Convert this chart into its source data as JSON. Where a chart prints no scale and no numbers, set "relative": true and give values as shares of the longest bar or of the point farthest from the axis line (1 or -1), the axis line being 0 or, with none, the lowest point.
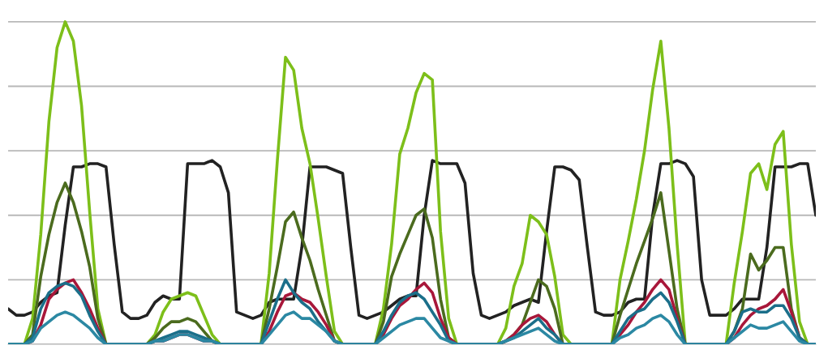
{
  "chart_data": {
    "type": "line",
    "relative": true,
    "grid": "y",
    "line_style": "solid",
    "marker": "none",
    "categories": [
      null,
      null,
      null,
      null,
      null,
      null,
      null,
      null,
      null,
      null,
      null,
      null,
      null,
      null,
      null,
      null,
      null,
      null,
      null,
      null,
      null,
      null,
      null,
      null,
      null,
      null,
      null,
      null,
      null,
      null,
      null,
      null,
      null,
      null,
      null,
      null,
      null,
      null,
      null,
      null,
      null,
      null,
      null,
      null,
      null,
      null,
      null,
      null,
      null,
      null,
      null,
      null,
      null,
      null,
      null,
      null,
      null,
      null,
      null,
      null,
      null,
      null,
      null,
      null,
      null,
      null,
      null,
      null,
      null,
      null,
      null,
      null,
      null,
      null,
      null,
      null,
      null,
      null,
      null,
      null,
      null,
      null,
      null,
      null,
      null,
      null,
      null,
      null,
      null,
      null,
      null,
      null,
      null,
      null,
      null,
      null,
      null,
      null,
      null,
      null
    ],
    "series": [
      {
        "color": "#222222",
        "values": [
          0.11,
          0.09,
          0.09,
          0.1,
          0.13,
          0.15,
          0.16,
          0.37,
          0.55,
          0.55,
          0.56,
          0.56,
          0.55,
          0.31,
          0.1,
          0.08,
          0.08,
          0.09,
          0.13,
          0.15,
          0.14,
          0.14,
          0.56,
          0.56,
          0.56,
          0.57,
          0.55,
          0.47,
          0.1,
          0.09,
          0.08,
          0.09,
          0.13,
          0.14,
          0.14,
          0.14,
          0.3,
          0.55,
          0.55,
          0.55,
          0.54,
          0.53,
          0.3,
          0.09,
          0.08,
          0.09,
          0.1,
          0.12,
          0.14,
          0.15,
          0.15,
          0.4,
          0.57,
          0.56,
          0.56,
          0.56,
          0.5,
          0.22,
          0.09,
          0.08,
          0.09,
          0.1,
          0.12,
          0.13,
          0.14,
          0.13,
          0.35,
          0.55,
          0.55,
          0.54,
          0.51,
          0.3,
          0.1,
          0.09,
          0.09,
          0.1,
          0.13,
          0.14,
          0.14,
          0.4,
          0.56,
          0.56,
          0.57,
          0.56,
          0.52,
          0.2,
          0.09,
          0.09,
          0.09,
          0.11,
          0.14,
          0.14,
          0.14,
          0.3,
          0.55,
          0.55,
          0.55,
          0.56,
          0.56,
          0.4
        ]
      },
      {
        "color": "#7dbf1a",
        "values": [
          0,
          0,
          0,
          0.08,
          0.34,
          0.69,
          0.92,
          1.0,
          0.94,
          0.74,
          0.41,
          0.11,
          0,
          0,
          0,
          0,
          0,
          0,
          0.03,
          0.1,
          0.14,
          0.15,
          0.16,
          0.15,
          0.09,
          0.03,
          0,
          0,
          0,
          0,
          0,
          0,
          0.22,
          0.57,
          0.89,
          0.85,
          0.67,
          0.56,
          0.39,
          0.21,
          0.04,
          0,
          0,
          0,
          0,
          0,
          0.11,
          0.31,
          0.59,
          0.67,
          0.78,
          0.84,
          0.82,
          0.35,
          0.08,
          0,
          0,
          0,
          0,
          0,
          0,
          0.05,
          0.18,
          0.25,
          0.4,
          0.38,
          0.34,
          0.21,
          0.03,
          0,
          0,
          0,
          0,
          0,
          0,
          0.2,
          0.32,
          0.45,
          0.6,
          0.79,
          0.94,
          0.67,
          0.31,
          0,
          0,
          0,
          0,
          0,
          0,
          0.19,
          0.35,
          0.53,
          0.56,
          0.48,
          0.62,
          0.66,
          0.31,
          0.07,
          0,
          0
        ]
      },
      {
        "color": "#4b6b1e",
        "values": [
          0,
          0,
          0,
          0.03,
          0.21,
          0.34,
          0.44,
          0.5,
          0.44,
          0.35,
          0.24,
          0.08,
          0,
          0,
          0,
          0,
          0,
          0,
          0.02,
          0.05,
          0.07,
          0.07,
          0.08,
          0.07,
          0.04,
          0.01,
          0,
          0,
          0,
          0,
          0,
          0,
          0.11,
          0.24,
          0.38,
          0.41,
          0.33,
          0.26,
          0.17,
          0.09,
          0.01,
          0,
          0,
          0,
          0,
          0,
          0.07,
          0.21,
          0.28,
          0.34,
          0.4,
          0.42,
          0.33,
          0.14,
          0.02,
          0,
          0,
          0,
          0,
          0,
          0,
          0.01,
          0.03,
          0.06,
          0.13,
          0.2,
          0.18,
          0.11,
          0,
          0,
          0,
          0,
          0,
          0,
          0,
          0.09,
          0.17,
          0.25,
          0.32,
          0.39,
          0.47,
          0.29,
          0.11,
          0,
          0,
          0,
          0,
          0,
          0,
          0.04,
          0.11,
          0.28,
          0.23,
          0.26,
          0.3,
          0.3,
          0.11,
          0.02,
          0,
          0
        ]
      },
      {
        "color": "#a8173a",
        "values": [
          null,
          null,
          0,
          0.01,
          0.06,
          0.14,
          0.17,
          0.19,
          0.2,
          0.16,
          0.11,
          0.05,
          0,
          0,
          0,
          0,
          0,
          0,
          0.01,
          0.01,
          0.02,
          0.03,
          0.03,
          0.02,
          0.01,
          0.01,
          0,
          0,
          0,
          0,
          0,
          0,
          0.04,
          0.1,
          0.15,
          0.16,
          0.14,
          0.13,
          0.1,
          0.06,
          0.01,
          0,
          0,
          0,
          0,
          0,
          0.03,
          0.08,
          0.12,
          0.14,
          0.17,
          0.19,
          0.16,
          0.08,
          0.02,
          0,
          0,
          0,
          0,
          0,
          0,
          0.01,
          0.03,
          0.06,
          0.08,
          0.09,
          0.07,
          0.03,
          0,
          0,
          0,
          0,
          0,
          0,
          0,
          0.03,
          0.06,
          0.1,
          0.13,
          0.17,
          0.2,
          0.17,
          0.08,
          0,
          0,
          0,
          0,
          0,
          0,
          0.02,
          0.06,
          0.09,
          0.11,
          0.12,
          0.14,
          0.17,
          0.1,
          0.02,
          0,
          0
        ]
      },
      {
        "color": "#1b6f8a",
        "values": [
          0,
          0,
          0,
          0.02,
          0.11,
          0.16,
          0.18,
          0.19,
          0.18,
          0.15,
          0.09,
          0.04,
          0,
          0,
          0,
          0,
          0,
          0,
          0.01,
          0.02,
          0.03,
          0.04,
          0.04,
          0.03,
          0.02,
          0.01,
          0,
          0,
          0,
          0,
          0,
          0,
          0.07,
          0.14,
          0.2,
          0.16,
          0.13,
          0.11,
          0.07,
          0.04,
          0.01,
          0,
          0,
          0,
          0,
          0,
          0.04,
          0.09,
          0.13,
          0.15,
          0.16,
          0.14,
          0.1,
          0.06,
          0.01,
          0,
          0,
          0,
          0,
          0,
          0,
          0.01,
          0.02,
          0.04,
          0.06,
          0.08,
          0.05,
          0.03,
          0,
          0,
          0,
          0,
          0,
          0,
          0,
          0.04,
          0.08,
          0.1,
          0.11,
          0.14,
          0.16,
          0.13,
          0.07,
          0,
          0,
          0,
          0,
          0,
          0,
          0.04,
          0.1,
          0.11,
          0.1,
          0.1,
          0.12,
          0.12,
          0.08,
          0.02,
          0,
          0
        ]
      },
      {
        "color": "#2b88a3",
        "values": [
          0,
          0,
          0,
          0.01,
          0.05,
          0.07,
          0.09,
          0.1,
          0.09,
          0.07,
          0.05,
          0.02,
          0,
          0,
          0,
          0,
          0,
          0,
          0.01,
          0.01,
          0.02,
          0.03,
          0.03,
          0.02,
          0.01,
          0.01,
          0,
          0,
          0,
          0,
          0,
          0,
          0.03,
          0.06,
          0.09,
          0.1,
          0.08,
          0.08,
          0.06,
          0.04,
          0.01,
          0,
          0,
          0,
          0,
          0,
          0.02,
          0.04,
          0.06,
          0.07,
          0.08,
          0.08,
          0.05,
          0.02,
          0.01,
          0,
          0,
          0,
          0,
          0,
          0,
          0.01,
          0.02,
          0.03,
          0.04,
          0.05,
          0.03,
          0.01,
          0,
          0,
          0,
          0,
          0,
          0,
          0,
          0.02,
          0.03,
          0.05,
          0.06,
          0.08,
          0.09,
          0.07,
          0.03,
          0,
          0,
          0,
          0,
          0,
          0,
          0.02,
          0.04,
          0.06,
          0.05,
          0.05,
          0.06,
          0.07,
          0.04,
          0.01,
          0,
          0
        ]
      }
    ]
  }
}
